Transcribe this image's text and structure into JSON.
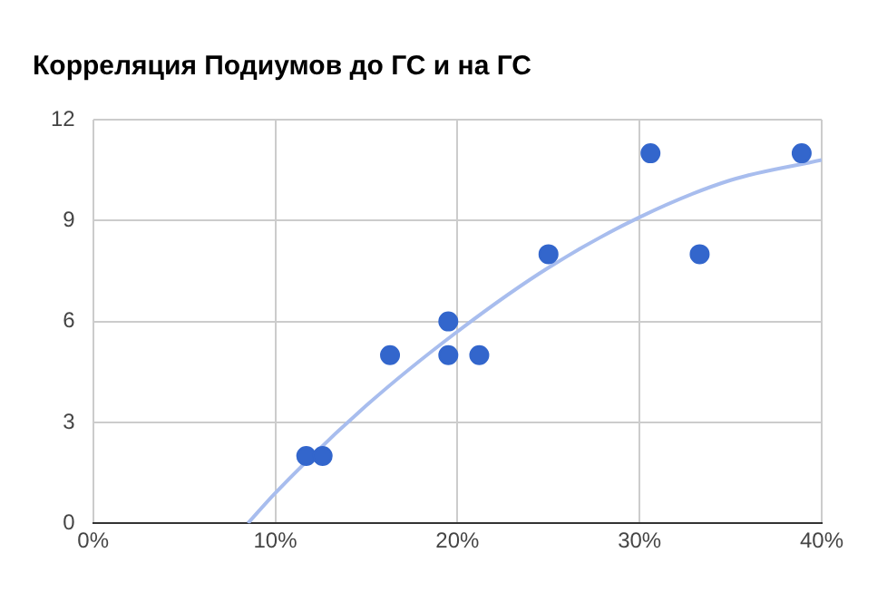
{
  "chart_data": {
    "type": "scatter",
    "title": "Корреляция Подиумов до ГС и на ГС",
    "series": [
      {
        "type": "scatter",
        "color": "#3366cc",
        "x": [
          11.7,
          12.6,
          16.3,
          19.5,
          19.5,
          21.2,
          25.0,
          30.6,
          33.3,
          38.9
        ],
        "values": [
          2,
          2,
          5,
          6,
          5,
          5,
          8,
          11,
          8,
          11
        ],
        "marker": "circle"
      },
      {
        "type": "line",
        "color": "#a8bdee",
        "x": [
          8.5,
          10,
          15,
          20,
          25,
          30,
          35,
          40
        ],
        "values": [
          0,
          0.9,
          3.5,
          5.7,
          7.6,
          9.1,
          10.2,
          10.8
        ],
        "marker": "none"
      }
    ],
    "xlim": [
      0,
      40
    ],
    "xticks": [
      {
        "value": 0,
        "label": "0%"
      },
      {
        "value": 10,
        "label": "10%"
      },
      {
        "value": 20,
        "label": "20%"
      },
      {
        "value": 30,
        "label": "30%"
      },
      {
        "value": 40,
        "label": "40%"
      }
    ],
    "ylim": [
      0,
      12
    ],
    "yticks": [
      0,
      3,
      6,
      9,
      12
    ],
    "grid": true
  }
}
